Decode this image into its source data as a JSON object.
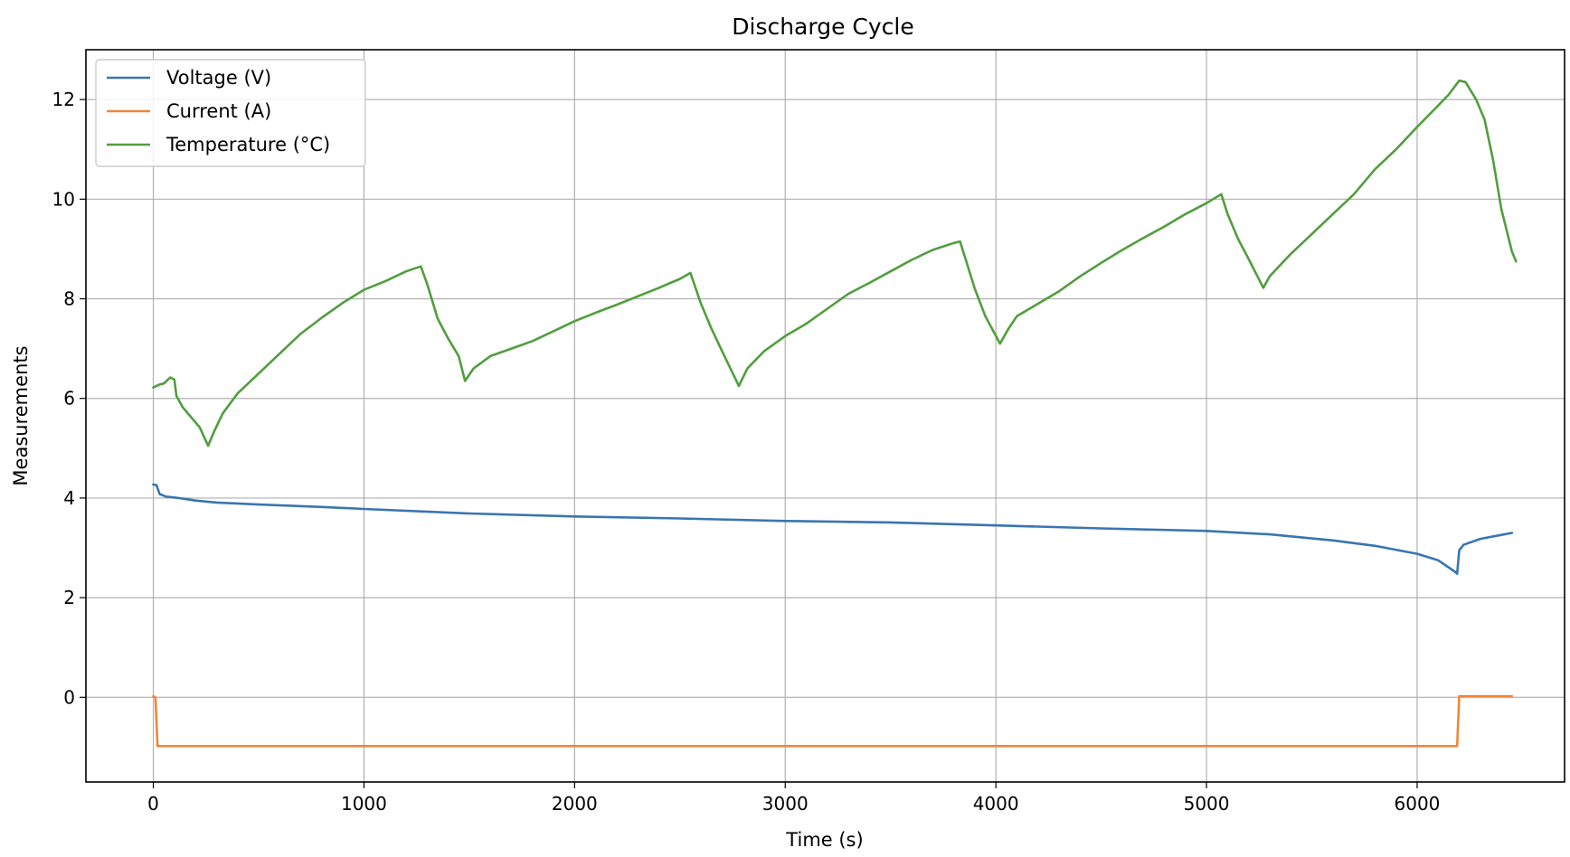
{
  "chart_data": {
    "type": "line",
    "title": "Discharge Cycle",
    "xlabel": "Time (s)",
    "ylabel": "Measurements",
    "xlim": [
      -320,
      6700
    ],
    "ylim": [
      -1.7,
      13.0
    ],
    "xticks": [
      0,
      1000,
      2000,
      3000,
      4000,
      5000,
      6000
    ],
    "yticks": [
      0,
      2,
      4,
      6,
      8,
      10,
      12
    ],
    "grid": true,
    "legend_position": "upper-left",
    "series": [
      {
        "name": "Voltage (V)",
        "color": "#3a75b0",
        "points": [
          [
            0,
            4.27
          ],
          [
            15,
            4.26
          ],
          [
            30,
            4.08
          ],
          [
            60,
            4.03
          ],
          [
            120,
            4.0
          ],
          [
            200,
            3.95
          ],
          [
            300,
            3.91
          ],
          [
            500,
            3.87
          ],
          [
            800,
            3.82
          ],
          [
            1000,
            3.78
          ],
          [
            1500,
            3.69
          ],
          [
            2000,
            3.63
          ],
          [
            2500,
            3.59
          ],
          [
            3000,
            3.54
          ],
          [
            3500,
            3.51
          ],
          [
            4000,
            3.45
          ],
          [
            4500,
            3.39
          ],
          [
            5000,
            3.34
          ],
          [
            5300,
            3.27
          ],
          [
            5600,
            3.15
          ],
          [
            5800,
            3.04
          ],
          [
            6000,
            2.88
          ],
          [
            6100,
            2.75
          ],
          [
            6180,
            2.52
          ],
          [
            6190,
            2.48
          ],
          [
            6200,
            2.95
          ],
          [
            6220,
            3.06
          ],
          [
            6300,
            3.18
          ],
          [
            6400,
            3.26
          ],
          [
            6450,
            3.3
          ]
        ]
      },
      {
        "name": "Current (A)",
        "color": "#ef8636",
        "points": [
          [
            0,
            0.02
          ],
          [
            10,
            0.0
          ],
          [
            20,
            -0.98
          ],
          [
            100,
            -0.98
          ],
          [
            1000,
            -0.98
          ],
          [
            2000,
            -0.98
          ],
          [
            3000,
            -0.98
          ],
          [
            4000,
            -0.98
          ],
          [
            5000,
            -0.98
          ],
          [
            6000,
            -0.98
          ],
          [
            6170,
            -0.98
          ],
          [
            6190,
            -0.98
          ],
          [
            6200,
            0.02
          ],
          [
            6300,
            0.02
          ],
          [
            6450,
            0.02
          ]
        ]
      },
      {
        "name": "Temperature (°C)",
        "color": "#519e3e",
        "points": [
          [
            0,
            6.22
          ],
          [
            30,
            6.28
          ],
          [
            50,
            6.3
          ],
          [
            80,
            6.42
          ],
          [
            100,
            6.38
          ],
          [
            110,
            6.05
          ],
          [
            140,
            5.82
          ],
          [
            180,
            5.62
          ],
          [
            220,
            5.42
          ],
          [
            260,
            5.05
          ],
          [
            290,
            5.35
          ],
          [
            330,
            5.7
          ],
          [
            400,
            6.1
          ],
          [
            500,
            6.5
          ],
          [
            600,
            6.9
          ],
          [
            700,
            7.3
          ],
          [
            800,
            7.62
          ],
          [
            900,
            7.92
          ],
          [
            1000,
            8.18
          ],
          [
            1100,
            8.35
          ],
          [
            1200,
            8.55
          ],
          [
            1270,
            8.65
          ],
          [
            1300,
            8.3
          ],
          [
            1350,
            7.6
          ],
          [
            1400,
            7.2
          ],
          [
            1450,
            6.85
          ],
          [
            1480,
            6.35
          ],
          [
            1520,
            6.6
          ],
          [
            1600,
            6.85
          ],
          [
            1700,
            7.0
          ],
          [
            1800,
            7.15
          ],
          [
            1900,
            7.35
          ],
          [
            2000,
            7.55
          ],
          [
            2100,
            7.72
          ],
          [
            2200,
            7.88
          ],
          [
            2300,
            8.05
          ],
          [
            2400,
            8.22
          ],
          [
            2500,
            8.4
          ],
          [
            2550,
            8.52
          ],
          [
            2600,
            7.9
          ],
          [
            2650,
            7.4
          ],
          [
            2700,
            6.95
          ],
          [
            2780,
            6.25
          ],
          [
            2820,
            6.6
          ],
          [
            2900,
            6.95
          ],
          [
            3000,
            7.25
          ],
          [
            3100,
            7.5
          ],
          [
            3200,
            7.8
          ],
          [
            3300,
            8.1
          ],
          [
            3400,
            8.32
          ],
          [
            3500,
            8.55
          ],
          [
            3600,
            8.78
          ],
          [
            3700,
            8.98
          ],
          [
            3800,
            9.12
          ],
          [
            3830,
            9.15
          ],
          [
            3860,
            8.75
          ],
          [
            3900,
            8.2
          ],
          [
            3950,
            7.65
          ],
          [
            4020,
            7.1
          ],
          [
            4060,
            7.4
          ],
          [
            4100,
            7.65
          ],
          [
            4200,
            7.9
          ],
          [
            4300,
            8.15
          ],
          [
            4400,
            8.45
          ],
          [
            4500,
            8.72
          ],
          [
            4600,
            8.98
          ],
          [
            4700,
            9.22
          ],
          [
            4800,
            9.45
          ],
          [
            4900,
            9.7
          ],
          [
            5000,
            9.92
          ],
          [
            5070,
            10.1
          ],
          [
            5100,
            9.7
          ],
          [
            5150,
            9.2
          ],
          [
            5200,
            8.8
          ],
          [
            5270,
            8.22
          ],
          [
            5300,
            8.45
          ],
          [
            5400,
            8.9
          ],
          [
            5500,
            9.3
          ],
          [
            5600,
            9.7
          ],
          [
            5700,
            10.1
          ],
          [
            5800,
            10.6
          ],
          [
            5900,
            11.0
          ],
          [
            6000,
            11.45
          ],
          [
            6100,
            11.88
          ],
          [
            6150,
            12.1
          ],
          [
            6200,
            12.38
          ],
          [
            6230,
            12.35
          ],
          [
            6280,
            12.0
          ],
          [
            6320,
            11.6
          ],
          [
            6360,
            10.8
          ],
          [
            6400,
            9.8
          ],
          [
            6450,
            8.95
          ],
          [
            6470,
            8.75
          ]
        ]
      }
    ]
  }
}
